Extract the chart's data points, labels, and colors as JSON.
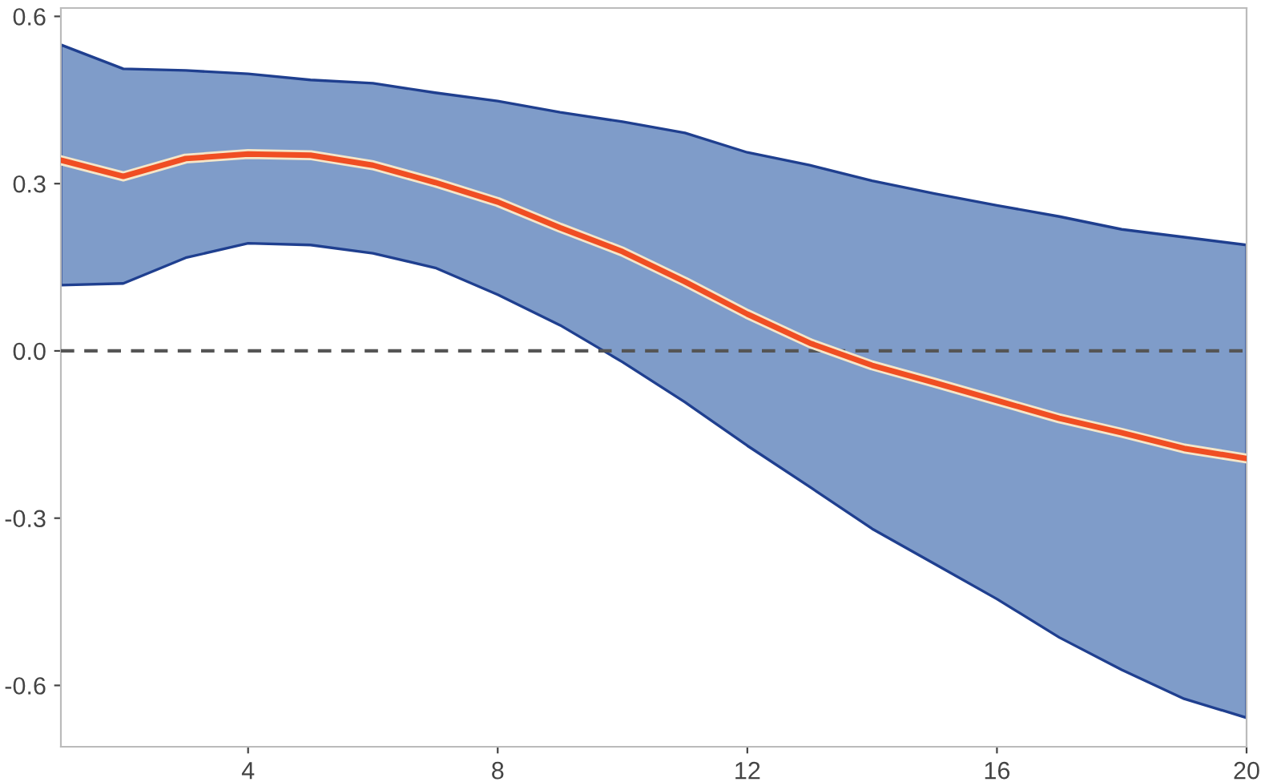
{
  "chart_data": {
    "type": "line",
    "x": [
      1,
      2,
      3,
      4,
      5,
      6,
      7,
      8,
      9,
      10,
      11,
      12,
      13,
      14,
      15,
      16,
      17,
      18,
      19,
      20
    ],
    "series": [
      {
        "color": "#f04e23",
        "values": [
          0.342,
          0.313,
          0.345,
          0.353,
          0.351,
          0.333,
          0.302,
          0.267,
          0.221,
          0.178,
          0.124,
          0.066,
          0.014,
          -0.026,
          -0.057,
          -0.089,
          -0.121,
          -0.147,
          -0.175,
          -0.193
        ],
        "lower": [
          0.118,
          0.121,
          0.167,
          0.193,
          0.19,
          0.175,
          0.149,
          0.101,
          0.046,
          -0.02,
          -0.092,
          -0.17,
          -0.244,
          -0.319,
          -0.382,
          -0.445,
          -0.514,
          -0.572,
          -0.624,
          -0.658
        ],
        "upper": [
          0.549,
          0.506,
          0.503,
          0.497,
          0.486,
          0.48,
          0.463,
          0.448,
          0.428,
          0.411,
          0.391,
          0.356,
          0.333,
          0.305,
          0.282,
          0.261,
          0.241,
          0.218,
          0.204,
          0.19
        ]
      }
    ],
    "xlim": [
      1,
      20
    ],
    "xticks": [
      4,
      8,
      12,
      16,
      20
    ],
    "ylim": [
      -0.71,
      0.615
    ],
    "yticks": [
      0.6,
      0.3,
      {
        "value": 0,
        "label": "0.0"
      },
      -0.3,
      -0.6
    ],
    "ref_lines": [
      {
        "axis": "y",
        "value": 0,
        "color": "#555555",
        "line_style": "dashed"
      }
    ],
    "grid": false
  }
}
